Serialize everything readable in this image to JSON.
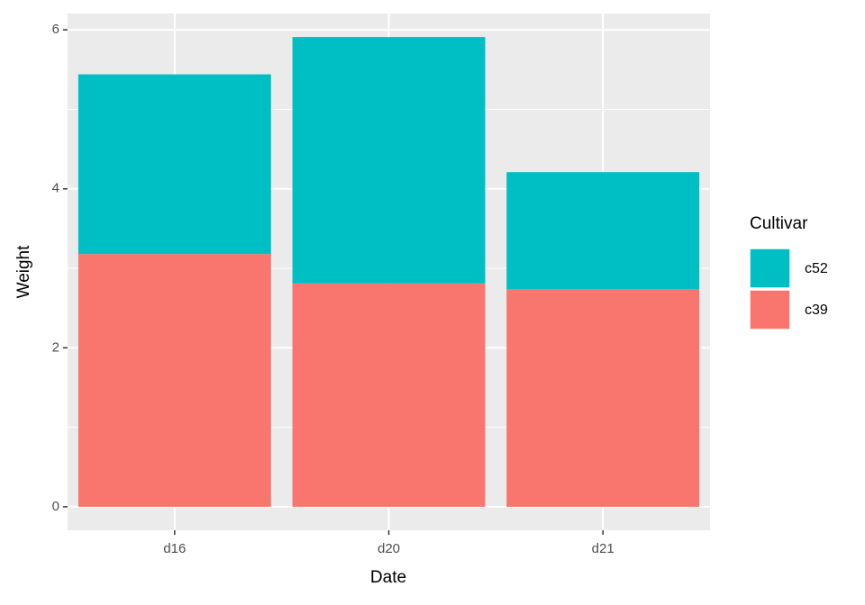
{
  "chart_data": {
    "type": "stacked_bar",
    "x_label": "Date",
    "y_label": "Weight",
    "categories": [
      "d16",
      "d20",
      "d21"
    ],
    "series": [
      {
        "name": "c39",
        "color": "#f8766d",
        "values": [
          3.18,
          2.81,
          2.74
        ]
      },
      {
        "name": "c52",
        "color": "#00bfc4",
        "values": [
          2.26,
          3.1,
          1.47
        ]
      }
    ],
    "legend_title": "Cultivar",
    "ylim": [
      -0.2955,
      6.2055
    ],
    "yticks": [
      0,
      2,
      4,
      6
    ],
    "minor_yticks": [
      1,
      3,
      5
    ],
    "grid": true,
    "legend_position": "right"
  }
}
